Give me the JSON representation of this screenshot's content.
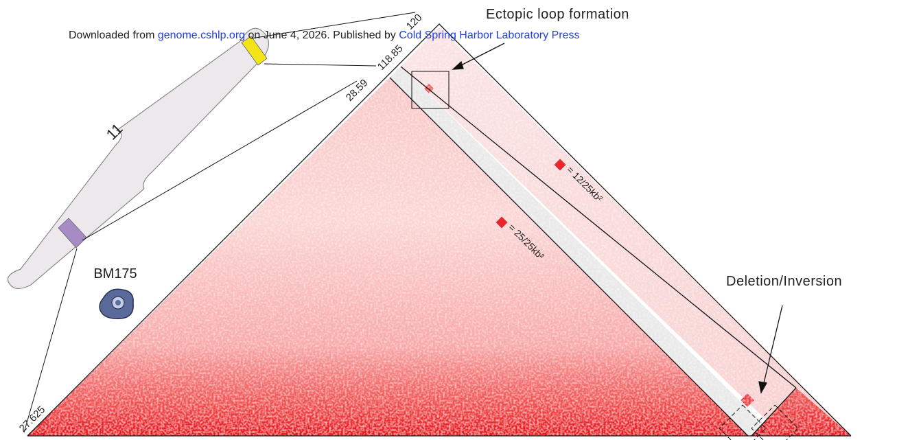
{
  "banner": {
    "prefix": "Downloaded from",
    "site": "genome.cshlp.org",
    "date": "on June 4, 2026",
    "published": ". Published by",
    "publisher": "Cold Spring Harbor Laboratory Press"
  },
  "chromosome": {
    "label": "11",
    "cell_line": "BM175"
  },
  "coordinates": [
    "27.625",
    "28.59",
    "118.85",
    "120"
  ],
  "annotations": {
    "ectopic": "Ectopic loop formation",
    "deletion": "Deletion/Inversion"
  },
  "scale_legend": [
    "= 25/25kb²",
    "= 12/25kb²"
  ]
}
